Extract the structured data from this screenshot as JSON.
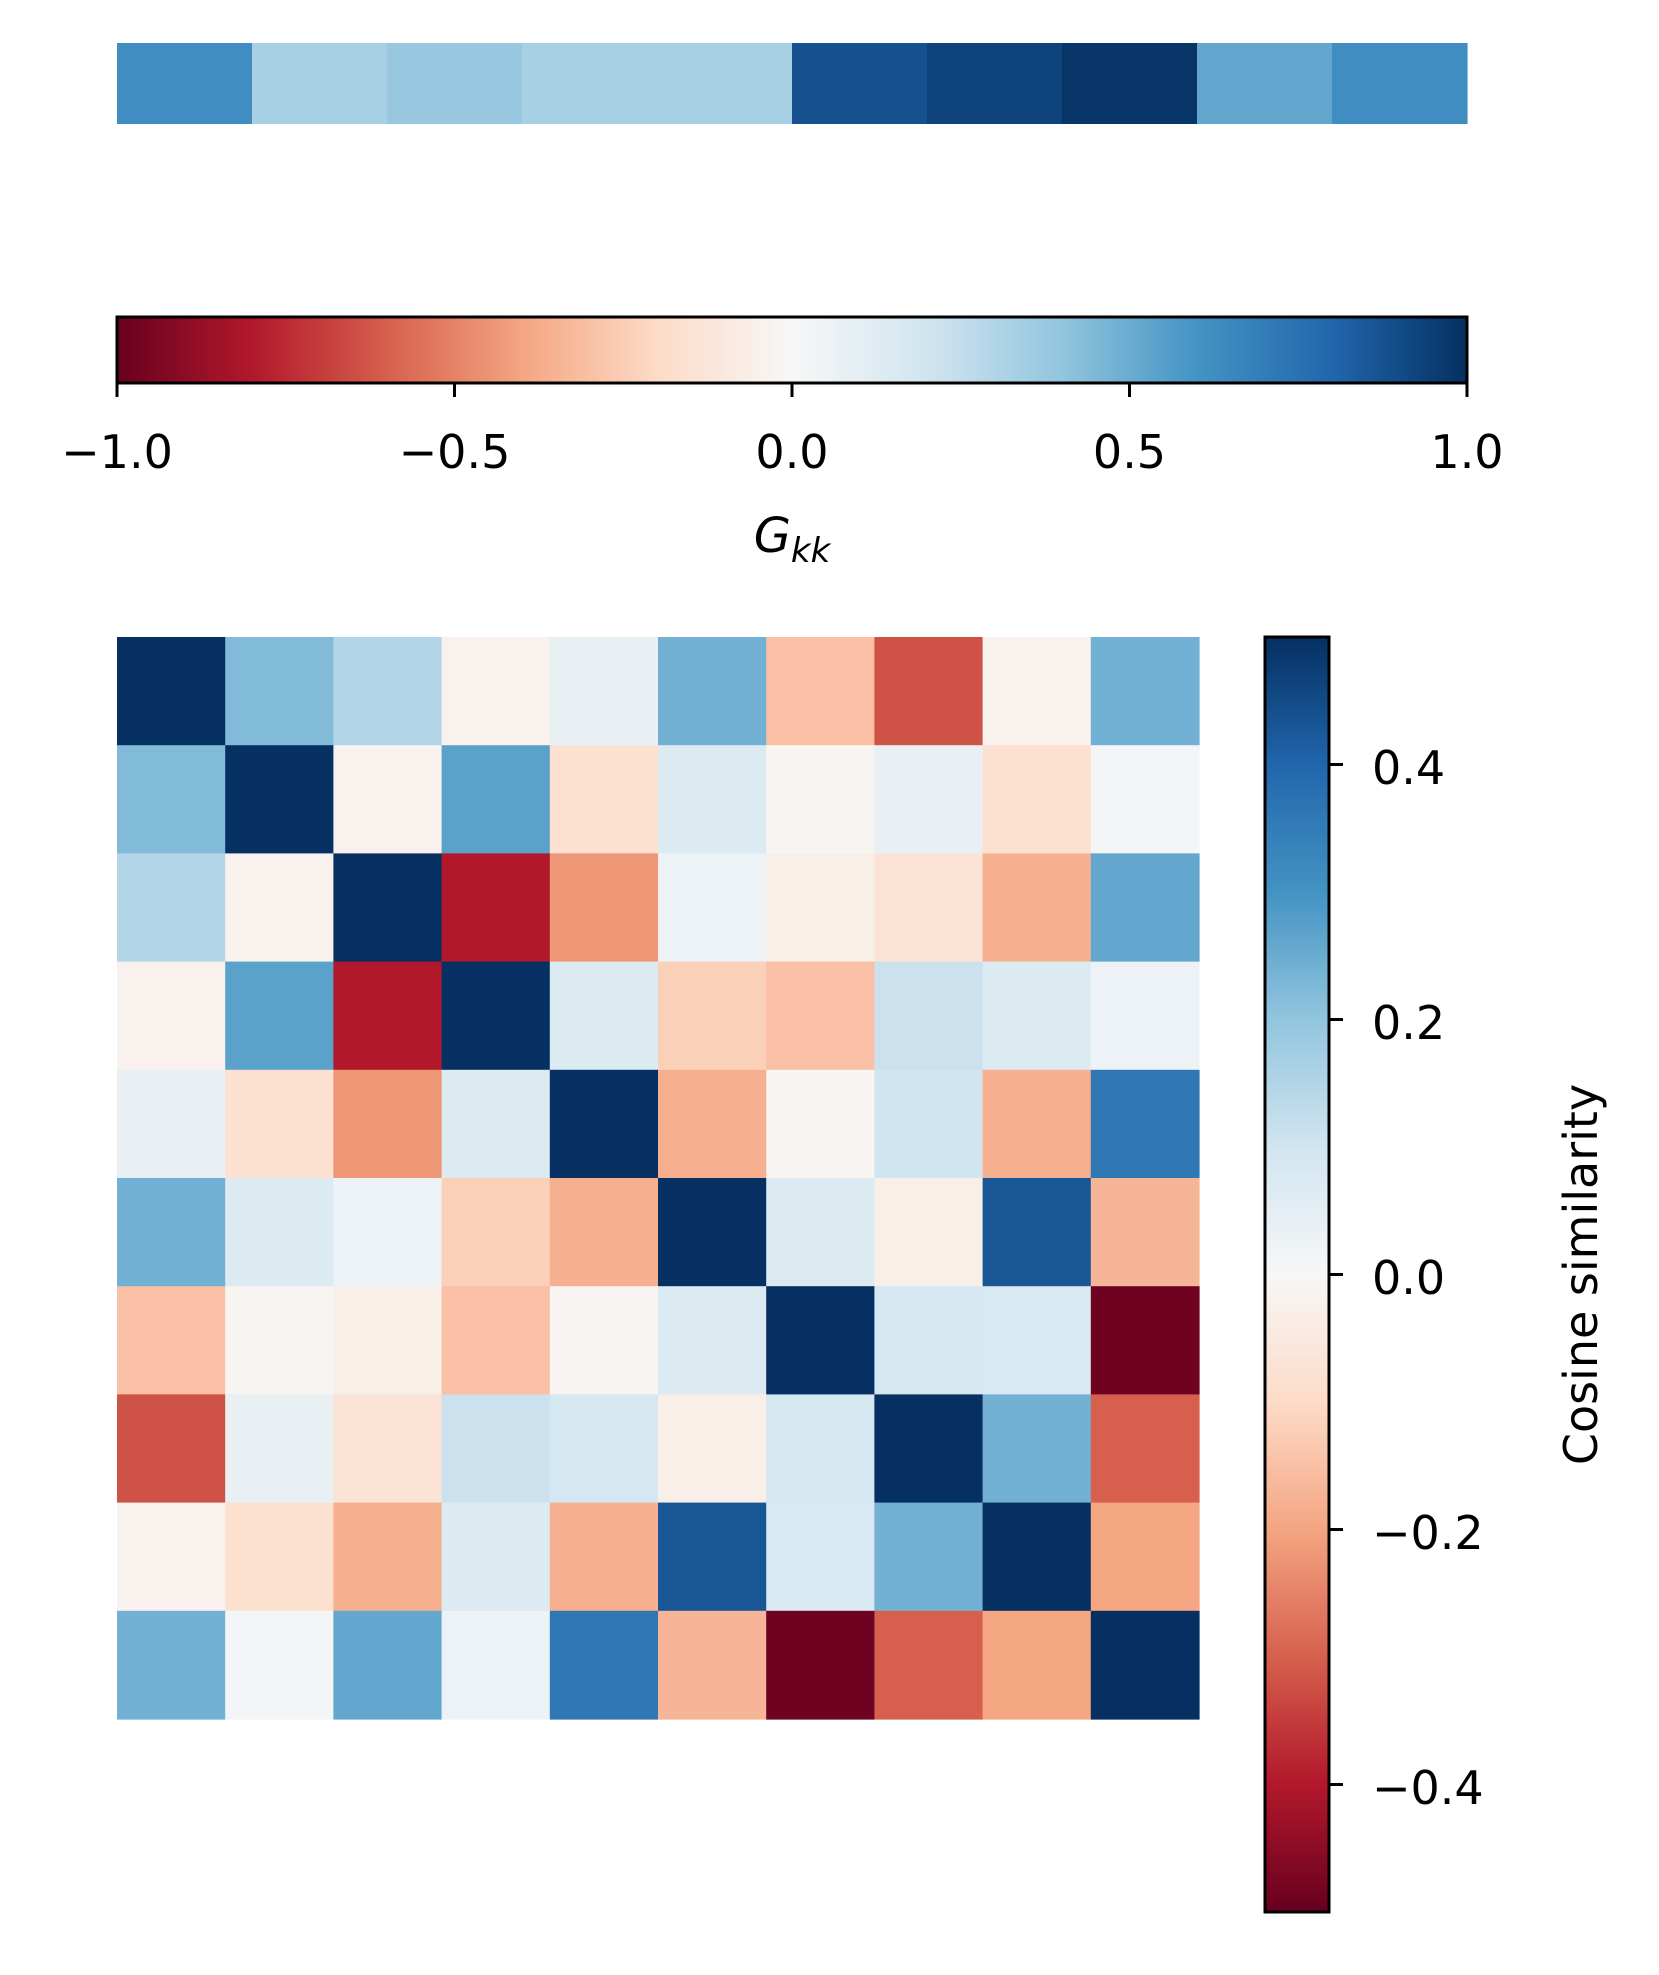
{
  "chart_data": [
    {
      "type": "heatmap",
      "title": "",
      "values": [
        0.62,
        0.33,
        0.38,
        0.33,
        0.33,
        0.88,
        0.93,
        0.98,
        0.52,
        0.62
      ],
      "colorbar": {
        "label_base": "G",
        "label_sub": "kk",
        "range": [
          -1.0,
          1.0
        ],
        "orientation": "horizontal",
        "ticks": [
          -1.0,
          -0.5,
          0.0,
          0.5,
          1.0
        ],
        "tick_labels": [
          "−1.0",
          "−0.5",
          "0.0",
          "0.5",
          "1.0"
        ]
      },
      "colormap": "RdBu"
    },
    {
      "type": "heatmap",
      "title": "",
      "rows": 10,
      "cols": 10,
      "values": [
        [
          0.5,
          0.22,
          0.15,
          -0.02,
          0.04,
          0.24,
          -0.15,
          -0.32,
          -0.02,
          0.24
        ],
        [
          0.22,
          0.5,
          -0.02,
          0.27,
          -0.08,
          0.07,
          -0.01,
          0.04,
          -0.08,
          0.01
        ],
        [
          0.15,
          -0.02,
          0.5,
          -0.4,
          -0.22,
          0.03,
          -0.03,
          -0.07,
          -0.18,
          0.26
        ],
        [
          -0.02,
          0.27,
          -0.4,
          0.5,
          0.07,
          -0.12,
          -0.15,
          0.11,
          0.07,
          0.03
        ],
        [
          0.04,
          -0.08,
          -0.22,
          0.07,
          0.5,
          -0.18,
          -0.01,
          0.1,
          -0.18,
          0.36
        ],
        [
          0.24,
          0.07,
          0.03,
          -0.12,
          -0.18,
          0.5,
          0.07,
          -0.03,
          0.43,
          -0.17
        ],
        [
          -0.15,
          -0.01,
          -0.03,
          -0.15,
          -0.01,
          0.07,
          0.5,
          0.09,
          0.08,
          -0.49
        ],
        [
          -0.32,
          0.04,
          -0.07,
          0.11,
          0.09,
          -0.03,
          0.09,
          0.5,
          0.24,
          -0.3
        ],
        [
          -0.02,
          -0.08,
          -0.18,
          0.07,
          -0.18,
          0.43,
          0.08,
          0.24,
          0.5,
          -0.2
        ],
        [
          0.24,
          0.01,
          0.26,
          0.03,
          0.36,
          -0.17,
          -0.49,
          -0.3,
          -0.2,
          0.5
        ]
      ],
      "colorbar": {
        "label": "Cosine similarity",
        "range": [
          -0.5,
          0.5
        ],
        "orientation": "vertical",
        "ticks": [
          0.4,
          0.2,
          0.0,
          -0.2,
          -0.4
        ],
        "tick_labels": [
          "0.4",
          "0.2",
          "0.0",
          "−0.2",
          "−0.4"
        ]
      },
      "colormap": "RdBu"
    }
  ],
  "colormap_stops": [
    "#67001f",
    "#b2182b",
    "#d6604d",
    "#f4a582",
    "#fddbc7",
    "#f7f7f7",
    "#d1e5f0",
    "#92c5de",
    "#4393c3",
    "#2166ac",
    "#053061"
  ]
}
